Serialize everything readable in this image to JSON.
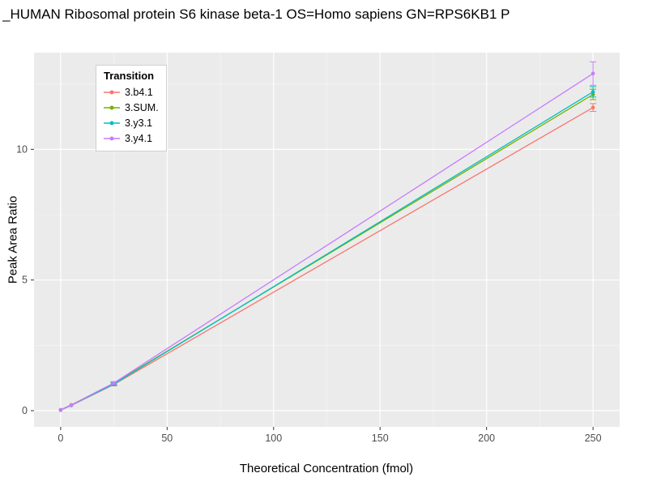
{
  "chart_data": {
    "type": "line",
    "title": "_HUMAN Ribosomal protein S6 kinase beta-1 OS=Homo sapiens GN=RPS6KB1 P",
    "xlabel": "Theoretical Concentration (fmol)",
    "ylabel": "Peak Area Ratio",
    "legend_title": "Transition",
    "legend_position": "top-left-inside",
    "panel_background": "#EBEBEB",
    "grid": true,
    "xlim": [
      -12.5,
      262.5
    ],
    "ylim": [
      -0.62,
      13.7
    ],
    "xticks": [
      0,
      50,
      100,
      150,
      200,
      250
    ],
    "yticks": [
      0,
      5,
      10
    ],
    "x": [
      0,
      5,
      25,
      250
    ],
    "series": [
      {
        "name": "3.b4.1",
        "color": "#F8766D",
        "values": [
          0.02,
          0.2,
          1.0,
          11.6
        ],
        "errors": [
          0,
          0,
          0.05,
          0.15
        ]
      },
      {
        "name": "3.SUM.",
        "color": "#7CAE00",
        "values": [
          0.03,
          0.22,
          1.05,
          12.1
        ],
        "errors": [
          0,
          0,
          0.05,
          0.2
        ]
      },
      {
        "name": "3.y3.1",
        "color": "#00BFC4",
        "values": [
          0.03,
          0.21,
          1.02,
          12.2
        ],
        "errors": [
          0,
          0,
          0.05,
          0.2
        ]
      },
      {
        "name": "3.y4.1",
        "color": "#C77CFF",
        "values": [
          0.03,
          0.22,
          1.06,
          12.9
        ],
        "errors": [
          0,
          0,
          0.05,
          0.45
        ]
      }
    ]
  }
}
